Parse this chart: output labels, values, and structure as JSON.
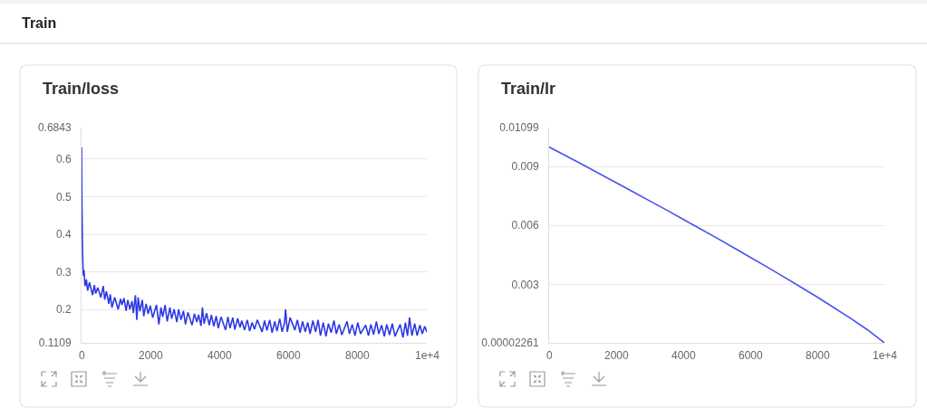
{
  "chart_data": [
    {
      "type": "other",
      "title": "Train"
    },
    {
      "type": "line",
      "title": "Train/loss",
      "xlim": [
        0,
        10000
      ],
      "xticks": [
        0,
        2000,
        4000,
        6000,
        8000,
        {
          "value": 10000,
          "label": "1e+4"
        }
      ],
      "ylim": [
        0.1109,
        0.6843
      ],
      "yticks": [
        0.1109,
        0.2,
        0.3,
        0.4,
        0.5,
        0.6,
        0.6843
      ],
      "grid": "y",
      "series": [
        {
          "color": "#2d38e3",
          "x": [
            0,
            8,
            25,
            35,
            50,
            70,
            100,
            140,
            175,
            230,
            320,
            370,
            410,
            470,
            560,
            630,
            670,
            720,
            790,
            830,
            880,
            960,
            1060,
            1130,
            1170,
            1230,
            1290,
            1340,
            1400,
            1460,
            1500,
            1560,
            1600,
            1640,
            1690,
            1760,
            1800,
            1870,
            1930,
            1990,
            2060,
            2170,
            2240,
            2300,
            2350,
            2420,
            2480,
            2560,
            2610,
            2680,
            2760,
            2810,
            2880,
            2950,
            3010,
            3080,
            3200,
            3270,
            3340,
            3390,
            3460,
            3500,
            3550,
            3620,
            3700,
            3760,
            3830,
            3900,
            3960,
            4040,
            4170,
            4240,
            4300,
            4380,
            4440,
            4520,
            4590,
            4640,
            4720,
            4800,
            4870,
            4940,
            5010,
            5090,
            5230,
            5300,
            5370,
            5450,
            5520,
            5600,
            5660,
            5740,
            5810,
            5880,
            5910,
            5960,
            6040,
            6180,
            6250,
            6330,
            6400,
            6480,
            6550,
            6620,
            6700,
            6780,
            6850,
            6920,
            7000,
            7080,
            7150,
            7230,
            7310,
            7380,
            7460,
            7540,
            7690,
            7760,
            7840,
            7920,
            8000,
            8080,
            8230,
            8310,
            8380,
            8460,
            8540,
            8610,
            8690,
            8770,
            8840,
            8920,
            9000,
            9080,
            9230,
            9310,
            9380,
            9440,
            9500,
            9570,
            9650,
            9720,
            9800,
            9870,
            9940,
            10000
          ],
          "values": [
            0.632,
            0.5,
            0.38,
            0.335,
            0.29,
            0.305,
            0.262,
            0.28,
            0.25,
            0.272,
            0.238,
            0.265,
            0.242,
            0.258,
            0.232,
            0.262,
            0.226,
            0.248,
            0.215,
            0.24,
            0.205,
            0.232,
            0.2,
            0.228,
            0.212,
            0.23,
            0.196,
            0.225,
            0.2,
            0.222,
            0.19,
            0.238,
            0.172,
            0.232,
            0.195,
            0.225,
            0.182,
            0.215,
            0.188,
            0.21,
            0.178,
            0.212,
            0.16,
            0.205,
            0.18,
            0.212,
            0.168,
            0.205,
            0.175,
            0.2,
            0.166,
            0.2,
            0.172,
            0.196,
            0.16,
            0.192,
            0.158,
            0.188,
            0.166,
            0.186,
            0.156,
            0.205,
            0.162,
            0.19,
            0.158,
            0.185,
            0.155,
            0.182,
            0.15,
            0.18,
            0.145,
            0.18,
            0.15,
            0.178,
            0.146,
            0.176,
            0.152,
            0.17,
            0.145,
            0.172,
            0.142,
            0.165,
            0.147,
            0.172,
            0.14,
            0.17,
            0.144,
            0.172,
            0.138,
            0.168,
            0.142,
            0.175,
            0.14,
            0.165,
            0.2,
            0.14,
            0.178,
            0.145,
            0.172,
            0.138,
            0.168,
            0.14,
            0.165,
            0.135,
            0.17,
            0.14,
            0.172,
            0.13,
            0.165,
            0.128,
            0.162,
            0.138,
            0.17,
            0.135,
            0.16,
            0.132,
            0.168,
            0.135,
            0.16,
            0.13,
            0.165,
            0.135,
            0.158,
            0.13,
            0.16,
            0.133,
            0.168,
            0.135,
            0.158,
            0.128,
            0.16,
            0.132,
            0.162,
            0.128,
            0.16,
            0.125,
            0.165,
            0.13,
            0.178,
            0.13,
            0.162,
            0.13,
            0.158,
            0.135,
            0.155,
            0.14
          ]
        }
      ]
    },
    {
      "type": "line",
      "title": "Train/lr",
      "xlim": [
        0,
        10000
      ],
      "xticks": [
        0,
        2000,
        4000,
        6000,
        8000,
        {
          "value": 10000,
          "label": "1e+4"
        }
      ],
      "ylim": [
        2.261e-05,
        0.01099
      ],
      "yticks": [
        {
          "value": 2.261e-05,
          "label": "0.00002261"
        },
        0.003,
        0.006,
        0.009,
        0.01099
      ],
      "grid": "y",
      "series": [
        {
          "color": "#4752f0",
          "x": [
            0,
            500,
            1000,
            1500,
            2000,
            2500,
            3000,
            3500,
            4000,
            4500,
            5000,
            5500,
            6000,
            6500,
            7000,
            7500,
            8000,
            8500,
            9000,
            9500,
            10000
          ],
          "values": [
            0.01,
            0.00955,
            0.0091,
            0.00864,
            0.00818,
            0.00772,
            0.00725,
            0.00679,
            0.00631,
            0.00584,
            0.00536,
            0.00487,
            0.00438,
            0.00389,
            0.00338,
            0.00287,
            0.00235,
            0.00181,
            0.00126,
            0.00068,
            2.261e-05
          ]
        }
      ]
    }
  ]
}
